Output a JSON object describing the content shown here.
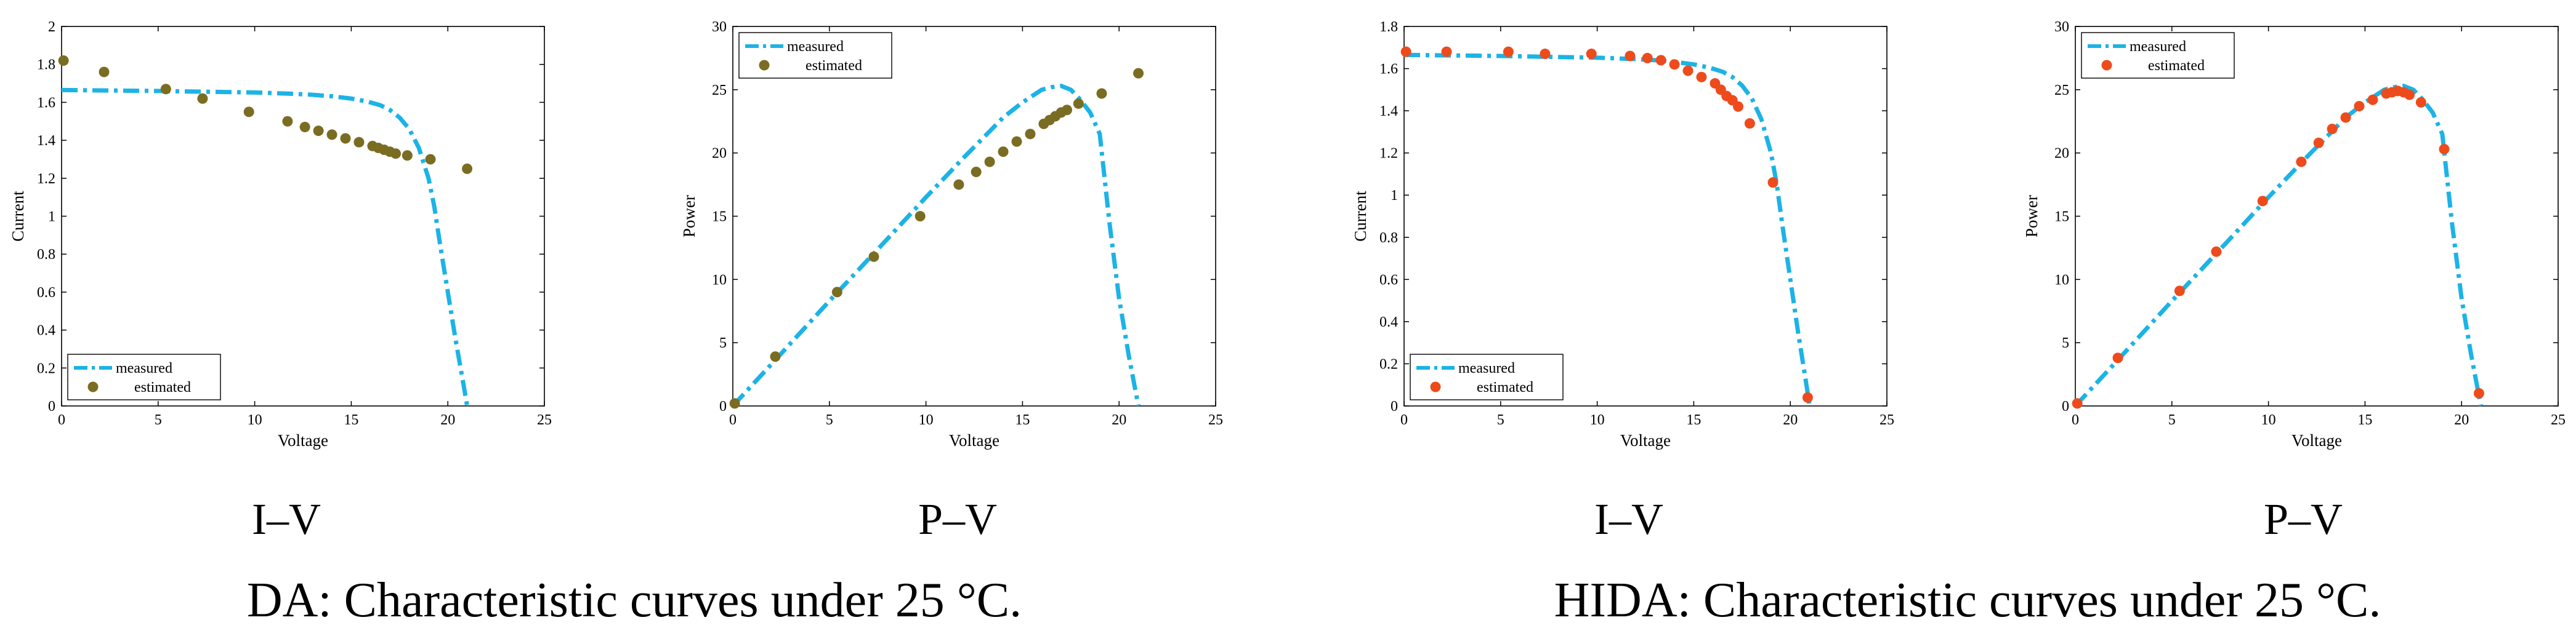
{
  "colors": {
    "measured": "#1cb3e6",
    "estimated_da": "#7a6d22",
    "estimated_hida": "#ee4b1c",
    "axis": "#000000"
  },
  "captions": {
    "left": "DA: Characteristic curves under 25 °C.",
    "right": "HIDA: Characteristic curves under 25 °C."
  },
  "chart_data": [
    {
      "type": "line",
      "group": "DA",
      "panel_label": "I–V",
      "xlabel": "Voltage",
      "ylabel": "Current",
      "xlim": [
        0,
        25
      ],
      "ylim": [
        0,
        2
      ],
      "xticks": [
        0,
        5,
        10,
        15,
        20,
        25
      ],
      "yticks": [
        0,
        0.2,
        0.4,
        0.6,
        0.8,
        1,
        1.2,
        1.4,
        1.6,
        1.8,
        2
      ],
      "legend": {
        "position": "bottom-left",
        "entries": [
          "measured",
          "estimated"
        ]
      },
      "series": [
        {
          "name": "measured",
          "style": "dash-dot",
          "x": [
            0,
            2,
            5,
            8,
            10,
            12,
            13,
            14,
            15,
            15.8,
            16.5,
            17,
            17.5,
            18,
            18.5,
            19,
            19.3,
            19.6,
            20,
            20.4,
            20.8,
            21
          ],
          "y": [
            1.665,
            1.663,
            1.66,
            1.655,
            1.652,
            1.645,
            1.64,
            1.632,
            1.62,
            1.605,
            1.585,
            1.56,
            1.52,
            1.46,
            1.36,
            1.2,
            1.05,
            0.85,
            0.6,
            0.35,
            0.12,
            0
          ]
        },
        {
          "name": "estimated",
          "style": "markers",
          "x": [
            0.1,
            2.2,
            5.4,
            7.3,
            9.7,
            11.7,
            12.6,
            13.3,
            14.0,
            14.7,
            15.4,
            16.1,
            16.4,
            16.7,
            17.0,
            17.3,
            17.9,
            19.1,
            21.0
          ],
          "y": [
            1.82,
            1.76,
            1.67,
            1.62,
            1.55,
            1.5,
            1.47,
            1.45,
            1.43,
            1.41,
            1.39,
            1.37,
            1.36,
            1.35,
            1.34,
            1.33,
            1.32,
            1.3,
            1.25
          ]
        }
      ]
    },
    {
      "type": "line",
      "group": "DA",
      "panel_label": "P–V",
      "xlabel": "Voltage",
      "ylabel": "Power",
      "xlim": [
        0,
        25
      ],
      "ylim": [
        0,
        30
      ],
      "xticks": [
        0,
        5,
        10,
        15,
        20,
        25
      ],
      "yticks": [
        0,
        5,
        10,
        15,
        20,
        25,
        30
      ],
      "legend": {
        "position": "top-left",
        "entries": [
          "measured",
          "estimated"
        ]
      },
      "series": [
        {
          "name": "measured",
          "style": "dash-dot",
          "x": [
            0,
            2,
            5,
            8,
            10,
            12,
            14,
            15,
            16,
            16.5,
            17,
            17.5,
            18,
            18.5,
            19,
            19.5,
            20,
            20.5,
            21
          ],
          "y": [
            0,
            3.3,
            8.3,
            13.2,
            16.5,
            19.7,
            22.8,
            24.0,
            25.0,
            25.2,
            25.3,
            25.0,
            24.2,
            23.2,
            21.5,
            14.5,
            8.5,
            4.0,
            0
          ]
        },
        {
          "name": "estimated",
          "style": "markers",
          "x": [
            0.1,
            2.2,
            5.4,
            7.3,
            9.7,
            11.7,
            12.6,
            13.3,
            14.0,
            14.7,
            15.4,
            16.1,
            16.4,
            16.7,
            17.0,
            17.3,
            17.9,
            19.1,
            21.0
          ],
          "y": [
            0.2,
            3.9,
            9.0,
            11.8,
            15.0,
            17.5,
            18.5,
            19.3,
            20.1,
            20.9,
            21.5,
            22.3,
            22.6,
            22.9,
            23.2,
            23.4,
            23.9,
            24.7,
            26.3
          ]
        }
      ]
    },
    {
      "type": "line",
      "group": "HIDA",
      "panel_label": "I–V",
      "xlabel": "Voltage",
      "ylabel": "Current",
      "xlim": [
        0,
        25
      ],
      "ylim": [
        0,
        1.8
      ],
      "xticks": [
        0,
        5,
        10,
        15,
        20,
        25
      ],
      "yticks": [
        0,
        0.2,
        0.4,
        0.6,
        0.8,
        1,
        1.2,
        1.4,
        1.6,
        1.8
      ],
      "legend": {
        "position": "bottom-left",
        "entries": [
          "measured",
          "estimated"
        ]
      },
      "series": [
        {
          "name": "measured",
          "style": "dash-dot",
          "x": [
            0,
            2,
            5,
            8,
            10,
            12,
            13,
            14,
            15,
            15.8,
            16.5,
            17,
            17.5,
            18,
            18.5,
            19,
            19.3,
            19.6,
            20,
            20.4,
            20.8,
            21
          ],
          "y": [
            1.665,
            1.663,
            1.66,
            1.655,
            1.652,
            1.645,
            1.64,
            1.632,
            1.62,
            1.605,
            1.585,
            1.56,
            1.52,
            1.46,
            1.36,
            1.2,
            1.05,
            0.85,
            0.6,
            0.35,
            0.12,
            0
          ]
        },
        {
          "name": "estimated",
          "style": "markers",
          "x": [
            0.1,
            2.2,
            5.4,
            7.3,
            9.7,
            11.7,
            12.6,
            13.3,
            14.0,
            14.7,
            15.4,
            16.1,
            16.4,
            16.7,
            17.0,
            17.3,
            17.9,
            19.1,
            20.9
          ],
          "y": [
            1.68,
            1.68,
            1.68,
            1.67,
            1.67,
            1.66,
            1.65,
            1.64,
            1.62,
            1.59,
            1.56,
            1.53,
            1.5,
            1.47,
            1.45,
            1.42,
            1.34,
            1.06,
            0.04
          ]
        }
      ]
    },
    {
      "type": "line",
      "group": "HIDA",
      "panel_label": "P–V",
      "xlabel": "Voltage",
      "ylabel": "Power",
      "xlim": [
        0,
        25
      ],
      "ylim": [
        0,
        30
      ],
      "xticks": [
        0,
        5,
        10,
        15,
        20,
        25
      ],
      "yticks": [
        0,
        5,
        10,
        15,
        20,
        25,
        30
      ],
      "legend": {
        "position": "top-left",
        "entries": [
          "measured",
          "estimated"
        ]
      },
      "series": [
        {
          "name": "measured",
          "style": "dash-dot",
          "x": [
            0,
            2,
            5,
            8,
            10,
            12,
            14,
            15,
            16,
            16.5,
            17,
            17.5,
            18,
            18.5,
            19,
            19.5,
            20,
            20.5,
            21
          ],
          "y": [
            0,
            3.3,
            8.3,
            13.2,
            16.5,
            19.7,
            22.8,
            24.0,
            25.0,
            25.2,
            25.3,
            25.0,
            24.2,
            23.2,
            21.5,
            14.5,
            8.5,
            4.0,
            0
          ]
        },
        {
          "name": "estimated",
          "style": "markers",
          "x": [
            0.1,
            2.2,
            5.4,
            7.3,
            9.7,
            11.7,
            12.6,
            13.3,
            14.0,
            14.7,
            15.4,
            16.1,
            16.4,
            16.7,
            17.0,
            17.3,
            17.9,
            19.1,
            20.9
          ],
          "y": [
            0.2,
            3.8,
            9.1,
            12.2,
            16.2,
            19.3,
            20.8,
            21.9,
            22.8,
            23.7,
            24.2,
            24.7,
            24.8,
            24.9,
            24.8,
            24.6,
            24.0,
            20.3,
            1.0
          ]
        }
      ]
    }
  ]
}
